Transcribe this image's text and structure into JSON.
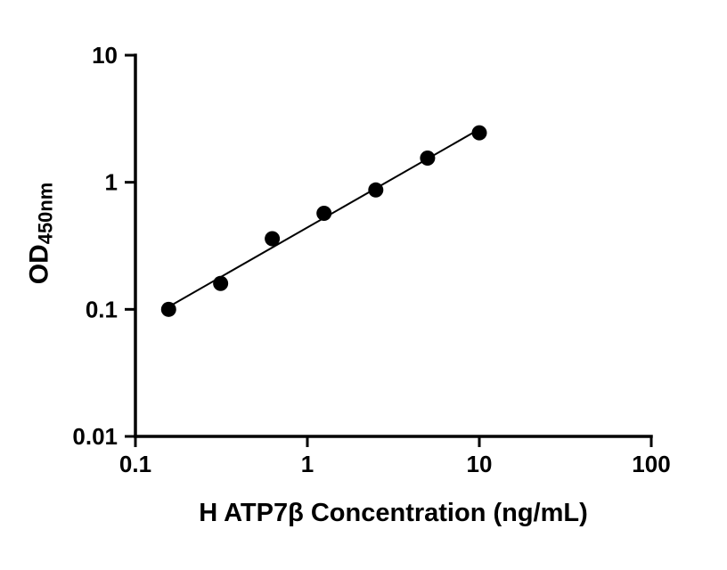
{
  "chart_data": {
    "type": "scatter",
    "title": "",
    "xlabel": "H ATP7β Concentration (ng/mL)",
    "ylabel_main": "OD",
    "ylabel_sub": "450nm",
    "x_scale": "log",
    "y_scale": "log",
    "xlim": [
      0.1,
      100
    ],
    "ylim": [
      0.01,
      10
    ],
    "x_ticks": [
      0.1,
      1,
      10,
      100
    ],
    "x_tick_labels": [
      "0.1",
      "1",
      "10",
      "100"
    ],
    "y_ticks": [
      0.01,
      0.1,
      1,
      10
    ],
    "y_tick_labels": [
      "0.01",
      "0.1",
      "1",
      "10"
    ],
    "x": [
      0.156,
      0.313,
      0.625,
      1.25,
      2.5,
      5,
      10
    ],
    "y": [
      0.1,
      0.16,
      0.36,
      0.57,
      0.87,
      1.55,
      2.45
    ],
    "fit": "linear-loglog",
    "grid": false,
    "legend": "none",
    "marker_color": "#000000",
    "line_color": "#000000",
    "axis_color": "#000000"
  }
}
